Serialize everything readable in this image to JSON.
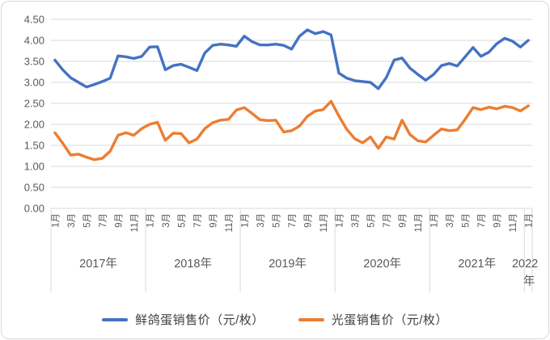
{
  "chart_data": {
    "type": "line",
    "title": "",
    "x_interval": "month",
    "x_start": "2017-01",
    "x_end": "2022-01",
    "x_axis": {
      "month_tick_labels": [
        "1月",
        "3月",
        "5月",
        "7月",
        "9月",
        "11月"
      ],
      "tick_every_months": 2,
      "years": [
        {
          "label": "2017年",
          "months": 12
        },
        {
          "label": "2018年",
          "months": 12
        },
        {
          "label": "2019年",
          "months": 12
        },
        {
          "label": "2020年",
          "months": 12
        },
        {
          "label": "2021年",
          "months": 12
        },
        {
          "label": "2022年",
          "label_line1": "2022",
          "label_line2": "年",
          "months": 1
        }
      ]
    },
    "y_axis": {
      "min": 0,
      "max": 4.5,
      "step": 0.5,
      "tick_labels": [
        "4.50",
        "4.00",
        "3.50",
        "3.00",
        "2.50",
        "2.00",
        "1.50",
        "1.00",
        "0.50",
        "0.00"
      ]
    },
    "grid": "horizontal",
    "legend_position": "bottom",
    "series": [
      {
        "name": "鲜鸽蛋销售价（元/枚）",
        "color": "#4472C4",
        "values": [
          3.53,
          3.3,
          3.11,
          3.0,
          2.89,
          2.95,
          3.02,
          3.1,
          3.63,
          3.61,
          3.57,
          3.62,
          3.84,
          3.85,
          3.3,
          3.4,
          3.43,
          3.36,
          3.28,
          3.7,
          3.88,
          3.91,
          3.89,
          3.86,
          4.1,
          3.97,
          3.89,
          3.89,
          3.91,
          3.88,
          3.79,
          4.1,
          4.25,
          4.16,
          4.21,
          4.13,
          3.22,
          3.1,
          3.04,
          3.02,
          3.0,
          2.85,
          3.11,
          3.53,
          3.58,
          3.34,
          3.19,
          3.05,
          3.19,
          3.4,
          3.45,
          3.39,
          3.61,
          3.83,
          3.62,
          3.72,
          3.92,
          4.05,
          3.98,
          3.84,
          4.0
        ]
      },
      {
        "name": "光蛋销售价（元/枚）",
        "color": "#ED7D31",
        "values": [
          1.8,
          1.55,
          1.27,
          1.29,
          1.22,
          1.16,
          1.19,
          1.36,
          1.74,
          1.8,
          1.74,
          1.9,
          2.0,
          2.05,
          1.62,
          1.79,
          1.78,
          1.56,
          1.65,
          1.9,
          2.04,
          2.1,
          2.12,
          2.34,
          2.4,
          2.26,
          2.11,
          2.09,
          2.1,
          1.82,
          1.85,
          1.96,
          2.19,
          2.32,
          2.35,
          2.55,
          2.2,
          1.88,
          1.66,
          1.56,
          1.7,
          1.43,
          1.7,
          1.65,
          2.1,
          1.76,
          1.61,
          1.58,
          1.74,
          1.89,
          1.85,
          1.87,
          2.12,
          2.4,
          2.35,
          2.41,
          2.37,
          2.43,
          2.4,
          2.32,
          2.44
        ]
      }
    ],
    "colors": {
      "gridline": "#d9d9d9",
      "separator": "#d9d9d9",
      "axis_text": "#595959",
      "legend_text": "#404040",
      "frame_border": "#d8d8d8"
    }
  }
}
